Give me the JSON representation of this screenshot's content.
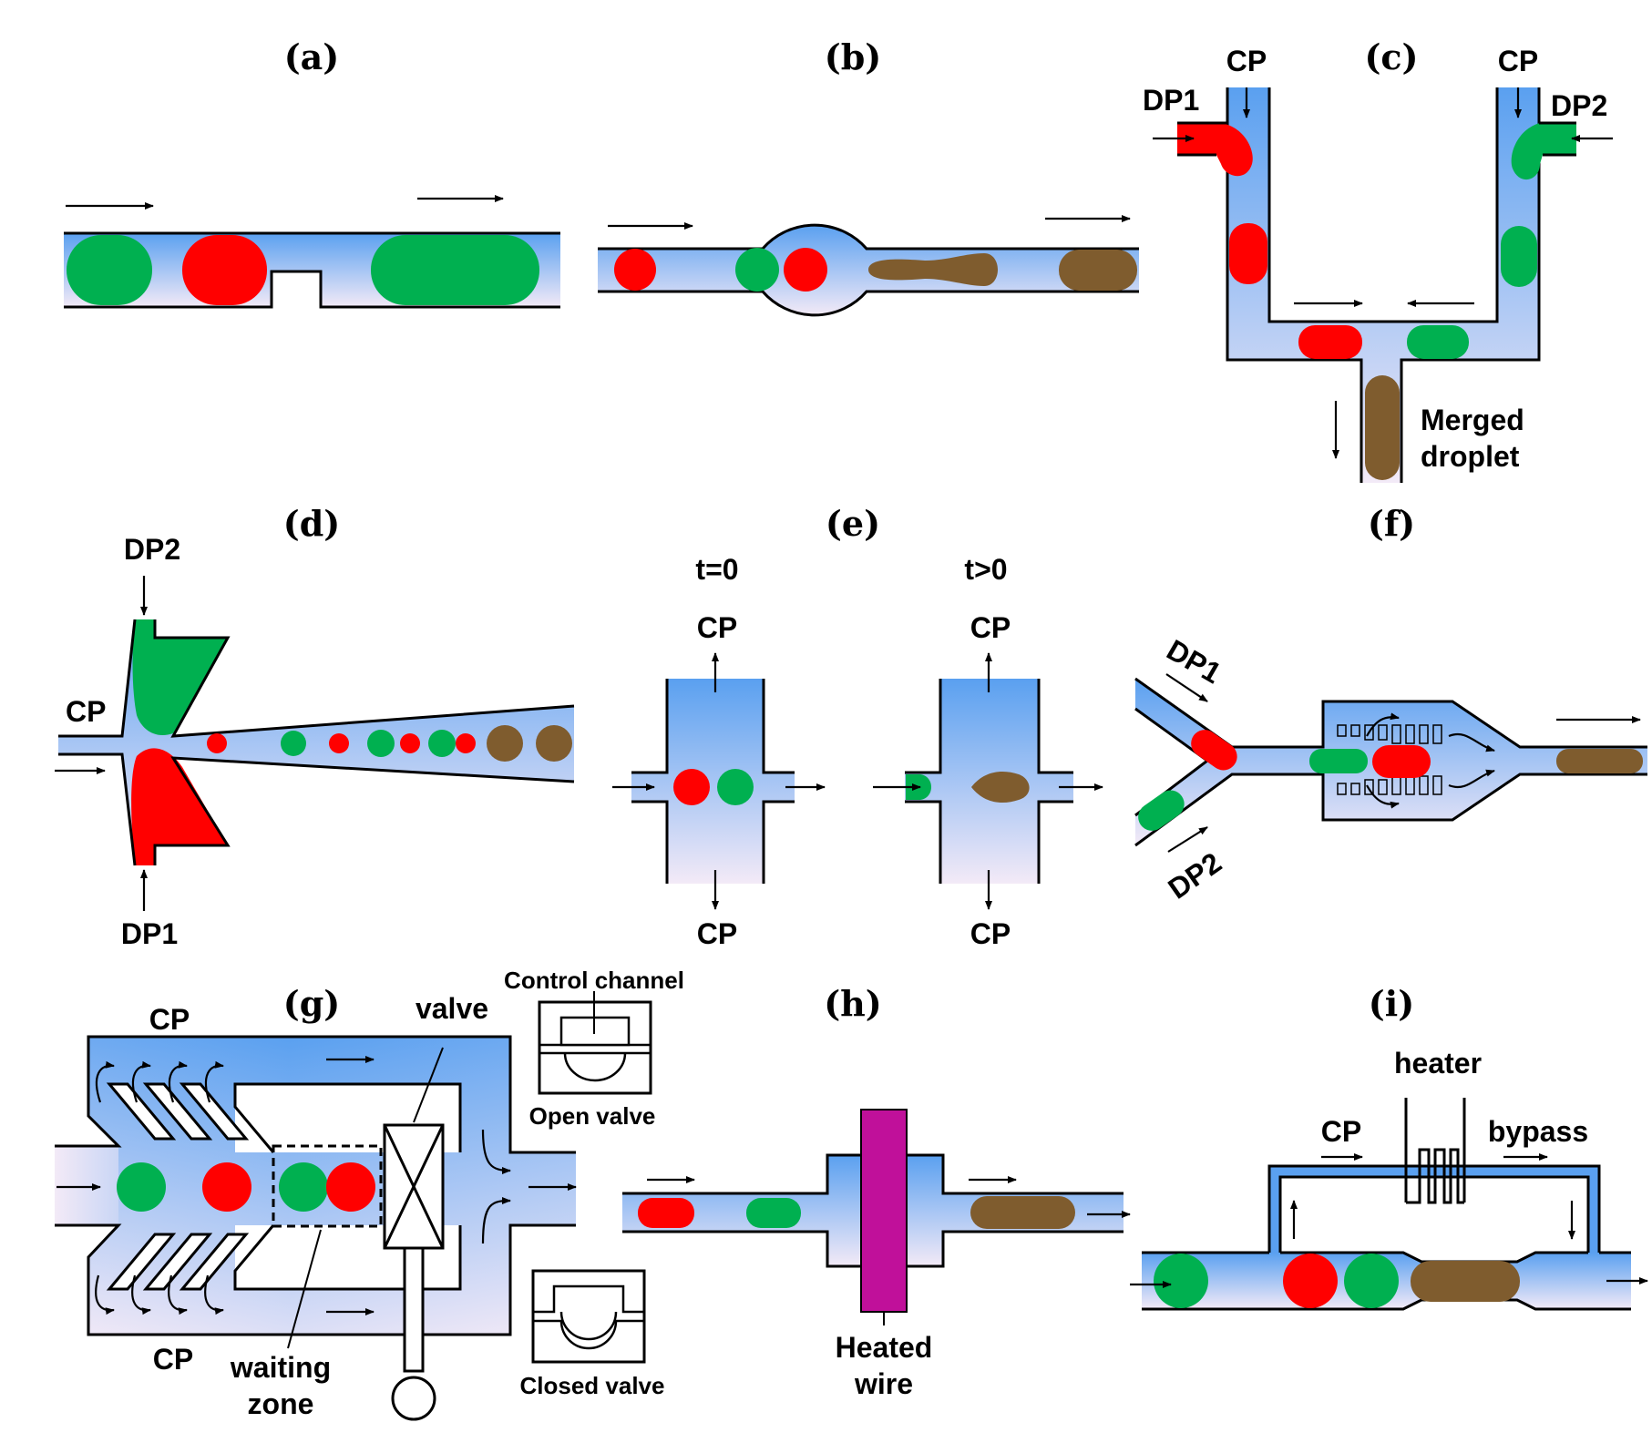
{
  "panels": {
    "a": {
      "label": "(a)"
    },
    "b": {
      "label": "(b)"
    },
    "c": {
      "label": "(c)",
      "cp_left": "CP",
      "cp_right": "CP",
      "dp1": "DP1",
      "dp2": "DP2",
      "merged_line1": "Merged",
      "merged_line2": "droplet"
    },
    "d": {
      "label": "(d)",
      "dp2": "DP2",
      "cp": "CP",
      "dp1": "DP1"
    },
    "e": {
      "label": "(e)",
      "t0": "t=0",
      "tgt0": "t>0",
      "cp_top_left": "CP",
      "cp_bottom_left": "CP",
      "cp_top_right": "CP",
      "cp_bottom_right": "CP"
    },
    "f": {
      "label": "(f)",
      "dp1": "DP1",
      "dp2": "DP2"
    },
    "g": {
      "label": "(g)",
      "cp_top": "CP",
      "cp_bottom": "CP",
      "valve": "valve",
      "control_channel": "Control channel",
      "open_valve": "Open valve",
      "closed_valve": "Closed valve",
      "waiting_line1": "waiting",
      "waiting_line2": "zone"
    },
    "h": {
      "label": "(h)",
      "heated_line1": "Heated",
      "heated_line2": "wire"
    },
    "i": {
      "label": "(i)",
      "heater": "heater",
      "cp": "CP",
      "bypass": "bypass"
    }
  },
  "colors": {
    "dispersed_1": "#ff0000",
    "dispersed_2": "#00b050",
    "merged": "#7f5c2e",
    "continuous_top": "#5aa0f0",
    "continuous_bottom": "#f3eaf7",
    "wire": "#c0109a"
  }
}
